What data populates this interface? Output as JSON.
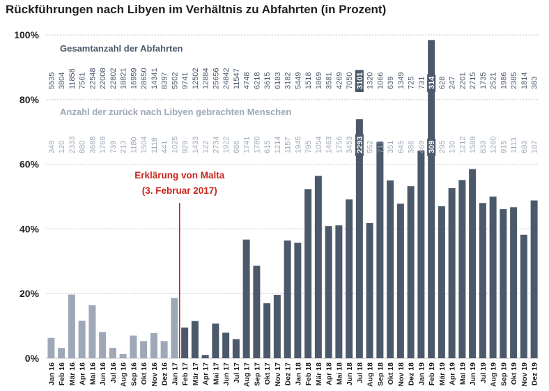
{
  "chart_data": {
    "type": "bar",
    "title": "Rückführungen nach Libyen im Verhältnis zu Abfahrten (in Prozent)",
    "ylim": [
      0,
      100
    ],
    "yticks": [
      "0%",
      "20%",
      "40%",
      "60%",
      "80%",
      "100%"
    ],
    "grid": true,
    "categories": [
      "Jan 16",
      "Feb 16",
      "Mär 16",
      "Apr 16",
      "Mai 16",
      "Jun 16",
      "Jul 16",
      "Aug 16",
      "Sep 16",
      "Okt 16",
      "Nov 16",
      "Dez 16",
      "Jan 17",
      "Feb 17",
      "Mär 17",
      "Apr 17",
      "Mai 17",
      "Jun 17",
      "Jul 17",
      "Aug 17",
      "Sep 17",
      "Okt 17",
      "Nov 17",
      "Dez 17",
      "Jan 18",
      "Feb 18",
      "Mär 18",
      "Apr 18",
      "Mai 18",
      "Jun 18",
      "Jul 18",
      "Aug 18",
      "Sep 18",
      "Okt 18",
      "Nov 18",
      "Dez 18",
      "Jan 19",
      "Feb 19",
      "Mär 19",
      "Apr 19",
      "Mai 19",
      "Jun 19",
      "Jul 19",
      "Aug 19",
      "Sep 19",
      "Okt 19",
      "Nov 19",
      "Dez 19"
    ],
    "values": [
      6.3,
      3.2,
      19.7,
      11.6,
      16.4,
      8.1,
      3.2,
      1.3,
      7.0,
      5.3,
      7.8,
      5.3,
      18.6,
      9.5,
      11.5,
      1.0,
      10.7,
      7.9,
      5.9,
      36.7,
      28.6,
      17.0,
      19.6,
      36.4,
      35.7,
      52.3,
      56.4,
      40.9,
      41.1,
      49.1,
      73.9,
      41.8,
      66.9,
      55.0,
      47.8,
      53.2,
      64.2,
      98.4,
      47.0,
      52.6,
      55.1,
      58.5,
      48.0,
      50.0,
      46.1,
      46.7,
      38.2,
      48.8
    ],
    "series": [
      {
        "name": "Gesamtanzahl der Abfahrten",
        "values": [
          "5535",
          "3804",
          "11858",
          "7561",
          "22548",
          "22008",
          "22802",
          "18821",
          "16959",
          "28650",
          "14341",
          "8397",
          "5502",
          "9741",
          "12502",
          "12884",
          "25656",
          "24842",
          "11547",
          "4748",
          "6218",
          "3615",
          "6183",
          "3182",
          "5449",
          "1518",
          "1869",
          "3581",
          "4269",
          "7050",
          "3101",
          "1320",
          "1066",
          "639",
          "1349",
          "725",
          "731",
          "314",
          "628",
          "247",
          "2201",
          "2715",
          "1735",
          "2521",
          "1986",
          "2385",
          "1814",
          "383"
        ]
      },
      {
        "name": "Anzahl der zurück nach Libyen gebrachten Menschen",
        "values": [
          "349",
          "120",
          "2333",
          "880",
          "3688",
          "1769",
          "739",
          "213",
          "1180",
          "1504",
          "1116",
          "441",
          "1025",
          "929",
          "1433",
          "122",
          "2734",
          "1922",
          "686",
          "1741",
          "1780",
          "615",
          "1214",
          "1157",
          "1945",
          "795",
          "1054",
          "1463",
          "1756",
          "3453",
          "2293",
          "552",
          "713",
          "351",
          "645",
          "386",
          "469",
          "309",
          "295",
          "130",
          "1212",
          "1589",
          "833",
          "1260",
          "915",
          "1113",
          "693",
          "187"
        ]
      }
    ],
    "annotation": {
      "text": [
        "Erklärung von Malta",
        "(3. Februar 2017)"
      ],
      "between": [
        "Jan 17",
        "Feb 17"
      ]
    },
    "highlighted_labels": [
      "Jul 18",
      "Feb 19"
    ],
    "colors": {
      "before": "#9ea8b7",
      "after": "#4b596b",
      "annotation": "#c8241c",
      "grid": "#c4c4c4",
      "total_label": "#4b596b",
      "returned_label": "#9ea8b7",
      "axis_text": "#1e1e1e"
    }
  }
}
